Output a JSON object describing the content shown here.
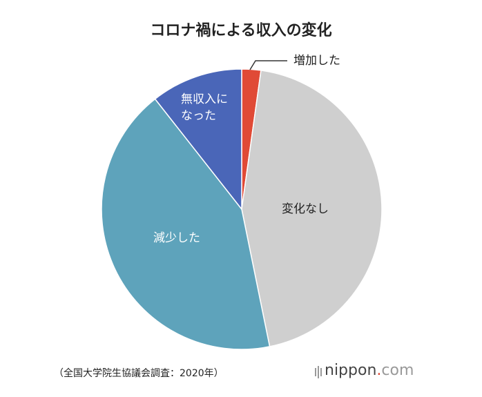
{
  "chart_data": {
    "type": "pie",
    "title": "コロナ禍による収入の変化",
    "categories": [
      "増加した",
      "変化なし",
      "減少した",
      "無収入になった"
    ],
    "values": [
      2.2,
      44.6,
      42.6,
      10.6
    ],
    "colors": [
      "#e04a36",
      "#cfcfcf",
      "#5ea3bb",
      "#4a66b8"
    ],
    "source": "（全国大学院生協議会調査：2020年）",
    "logo": {
      "name": "nippon",
      "dot": ".",
      "suffix": "com"
    }
  }
}
